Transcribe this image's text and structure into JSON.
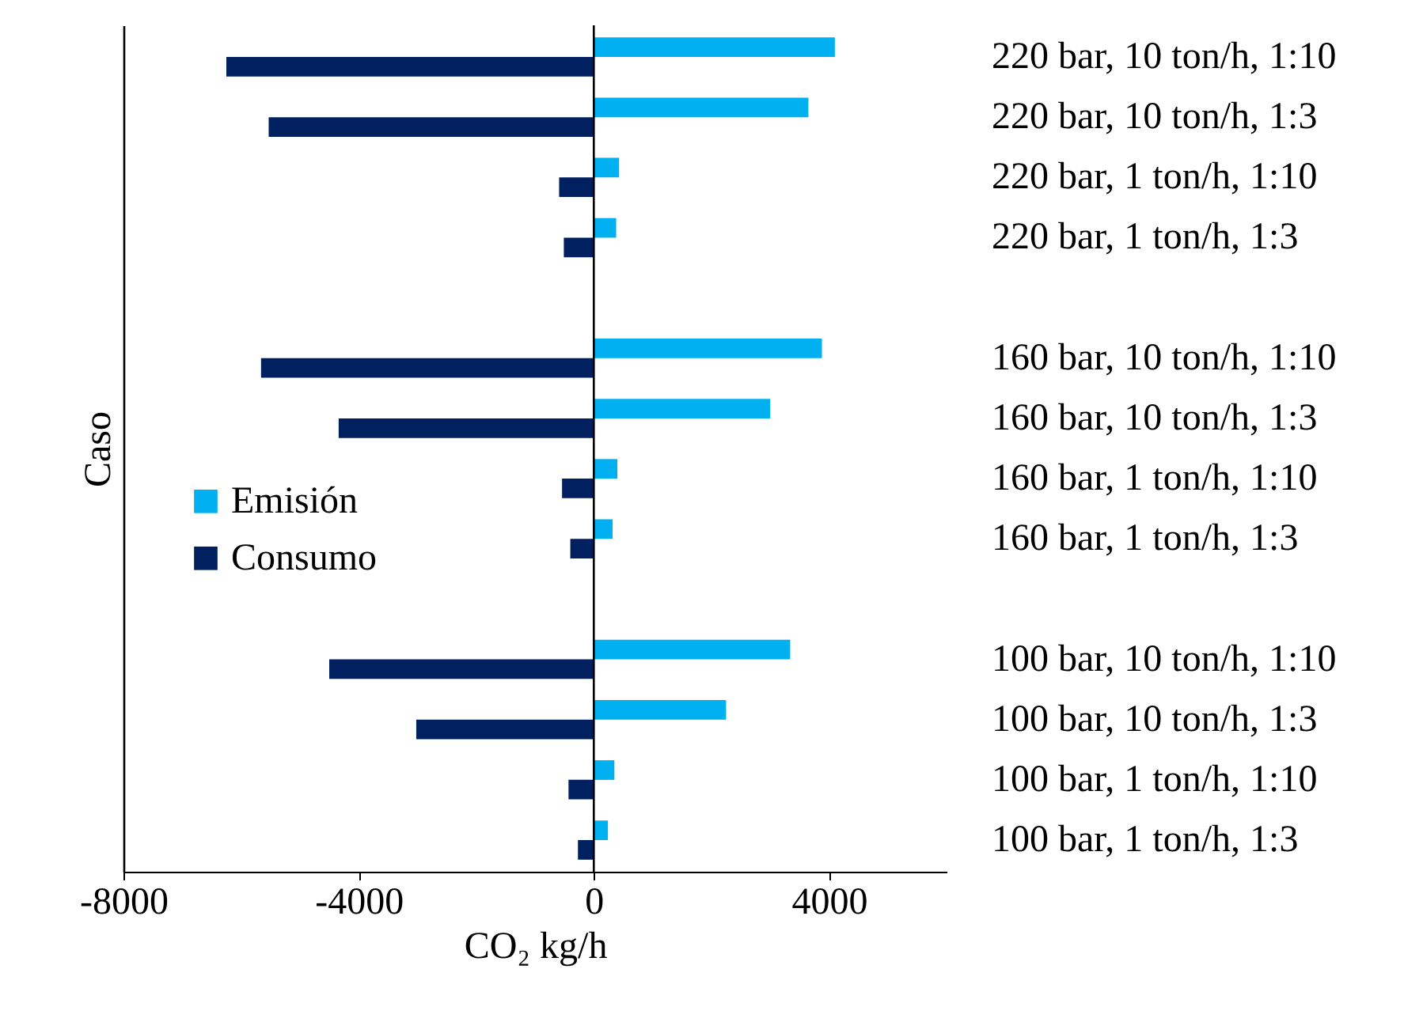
{
  "chart_data": {
    "type": "bar",
    "orientation": "horizontal",
    "xlabel": "CO₂ kg/h",
    "ylabel": "Caso",
    "categories": [
      "220 bar, 10 ton/h, 1:10",
      "220 bar, 10 ton/h, 1:3",
      "220 bar, 1 ton/h, 1:10",
      "220 bar, 1 ton/h, 1:3",
      null,
      "160 bar, 10 ton/h, 1:10",
      "160 bar, 10 ton/h, 1:3",
      "160 bar, 1 ton/h, 1:10",
      "160 bar, 1 ton/h, 1:3",
      null,
      "100 bar, 10 ton/h, 1:10",
      "100 bar, 10 ton/h, 1:3",
      "100 bar, 1 ton/h, 1:10",
      "100 bar, 1 ton/h, 1:3"
    ],
    "series": [
      {
        "name": "Emisión",
        "color": "#00b0f0",
        "values": [
          4100,
          3650,
          430,
          380,
          null,
          3880,
          3000,
          400,
          320,
          null,
          3340,
          2250,
          350,
          240
        ]
      },
      {
        "name": "Consumo",
        "color": "#002060",
        "values": [
          -6250,
          -5530,
          -590,
          -510,
          null,
          -5660,
          -4340,
          -540,
          -400,
          null,
          -4500,
          -3020,
          -430,
          -270
        ]
      }
    ],
    "xlim": [
      -8000,
      6000
    ],
    "xticks": [
      {
        "value": -8000,
        "label": "-8000"
      },
      {
        "value": -4000,
        "label": "-4000"
      },
      0,
      {
        "value": 4000,
        "label": "4000"
      }
    ],
    "ref_lines": [
      {
        "axis": "x",
        "value": 0,
        "color": "#000000"
      }
    ],
    "grid": false,
    "legend": "left"
  }
}
